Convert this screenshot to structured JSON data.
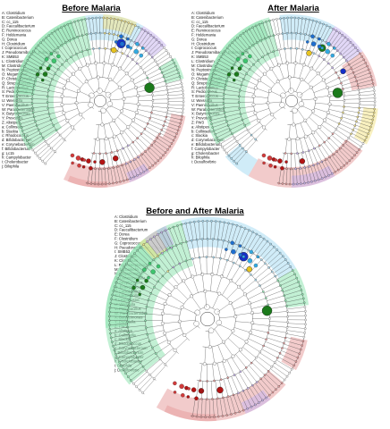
{
  "panels": [
    {
      "id": "before",
      "title": "Before Malaria",
      "legend": [
        "A: Clostridium",
        "B: Catenibacterium",
        "C: cc_115",
        "D: Faecalibacterium",
        "E: Ruminococcus",
        "F: Holdemania",
        "G: Dorea",
        "H: Clostridium",
        "I: Coprococcus",
        "J: Pseudoramibacter_Eubacterium",
        "K: SMB53",
        "L: Clostridium",
        "M: Clostridium",
        "N: Peptostreptococcus",
        "O: Megamonas",
        "P: Christensenella",
        "Q: Streptococcus",
        "R: Lactobacillus",
        "S: Pediococcus",
        "T: Enterococcus",
        "U: Weissella",
        "V: Paenibacillus",
        "W: Parabacteroides",
        "X: Butyricimonas",
        "Y: Prevotella",
        "Z: Alistipes",
        "a: Collinsella",
        "b: Slackia",
        "c: Rhodococcus",
        "d: Bifidobacterium",
        "e: Corynebacterium",
        "f: Bifidobacterium",
        "g: Lc15",
        "h: Campylobacter",
        "i: Cholerobacter",
        "j: Bilophila"
      ]
    },
    {
      "id": "after",
      "title": "After Malaria",
      "legend": [
        "A: Clostridium",
        "B: Catenibacterium",
        "C: cc_115",
        "D: Faecalibacterium",
        "E: Ruminococcus",
        "F: Holdemania",
        "G: Dorea",
        "H: Clostridium",
        "I: Coprococcus",
        "J: Pseudoramibacter_Eubacterium",
        "K: SMB53",
        "L: Clostridium",
        "M: Clostridium",
        "N: Peptostreptococcus",
        "O: Megamonas",
        "P: Christensenella",
        "Q: Streptococcus",
        "R: Lactobacillus",
        "S: Pediococcus",
        "T: Enterococcus",
        "U: Weissella",
        "V: Paenibacillus",
        "W: Parabacteroides",
        "X: Butyricimonas",
        "Y: Prevotella",
        "Z: PW3",
        "a: Alistipes",
        "b: Collinsella",
        "c: Slackia",
        "d: Corynebacterium",
        "e: Bifidobacterium",
        "f: Campylobacter",
        "g: Cholerobacter",
        "h: Bilophila",
        "i: Desulfovibrio"
      ]
    },
    {
      "id": "both",
      "title": "Before and After Malaria",
      "legend": [
        "A: Clostridium",
        "B: Catenibacterium",
        "C: cc_115",
        "D: Faecalibacterium",
        "E: Dorea",
        "F: Clostridium",
        "G: Coprococcus",
        "H: Pseudoramibacter_Eubacterium",
        "I: SMB53",
        "J: Clostridium",
        "K: Clostridium",
        "L: Peptostreptococcus",
        "M: Mitsuokella",
        "N: Megamonas",
        "O: Christensenella",
        "P: Streptococcus",
        "Q: Enterococcus",
        "R: Lactobacillus",
        "S: Lactobacillus",
        "T: Leuconostoc",
        "U: Weissella",
        "V: Paenibacillus",
        "W: Parabacteroides",
        "X: Butyricimonas",
        "Y: Prevotella",
        "Z: PW3",
        "a: Alistipes",
        "b: Collinsella",
        "c: Slackia",
        "d: Rhodococcus",
        "e: Corynebacterium",
        "f: Bifidobacterium",
        "g: Campylobacter",
        "h: Cholerobacter",
        "i: Bilophila",
        "j: Desulfovibrio"
      ]
    }
  ],
  "clade_colors": {
    "firmicutes": "#8fe3b0",
    "clostridia": "#e8a0a0",
    "bacteroidetes": "#a9dcf2",
    "actinobacteria": "#c9b6ee",
    "proteobacteria": "#f3e48a",
    "node_green": "#1b7a1b",
    "node_blue": "#1530c8",
    "node_red": "#b31414",
    "node_yellow": "#e8c420"
  }
}
